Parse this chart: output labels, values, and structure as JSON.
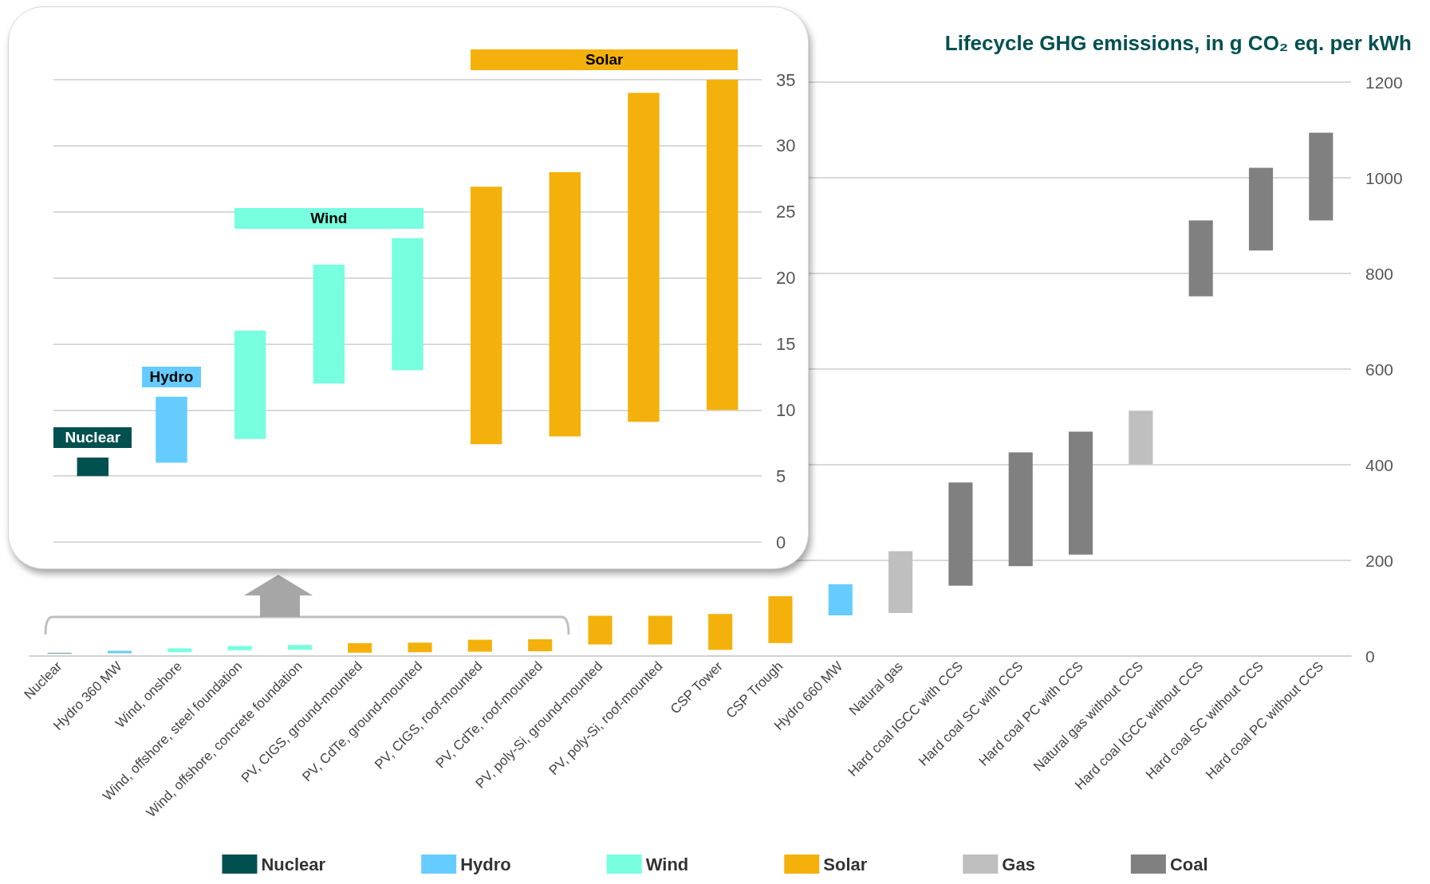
{
  "chart_data": [
    {
      "type": "bar",
      "title": "Lifecycle GHG emissions, in g CO₂ eq. per kWh",
      "categories": [
        "Nuclear",
        "Hydro 360 MW",
        "Wind, onshore",
        "Wind, offshore, steel foundation",
        "Wind, offshore, concrete foundation",
        "PV, CIGS, ground-mounted",
        "PV, CdTe, ground-mounted",
        "PV, CIGS, roof-mounted",
        "PV, CdTe, roof-mounted",
        "PV, poly-Si, ground-mounted",
        "PV, poly-Si, roof-mounted",
        "CSP Tower",
        "CSP Trough",
        "Hydro 660 MW",
        "Natural gas",
        "Hard coal IGCC with CCS",
        "Hard coal SC with CCS",
        "Hard coal PC with CCS",
        "Natural gas without CCS",
        "Hard coal IGCC without CCS",
        "Hard coal SC without CCS",
        "Hard coal PC without CCS"
      ],
      "series": [
        {
          "name": "Nuclear",
          "color": "#00504f",
          "values": [
            1,
            null,
            null,
            null,
            null,
            null,
            null,
            null,
            null,
            null,
            null,
            null,
            null,
            null,
            null,
            null,
            null,
            null,
            null,
            null,
            null,
            null
          ],
          "base": [
            5,
            null,
            null,
            null,
            null,
            null,
            null,
            null,
            null,
            null,
            null,
            null,
            null,
            null,
            null,
            null,
            null,
            null,
            null,
            null,
            null,
            null
          ]
        },
        {
          "name": "Hydro",
          "color": "#66ccff",
          "values": [
            null,
            5,
            null,
            null,
            null,
            null,
            null,
            null,
            null,
            null,
            null,
            null,
            null,
            65,
            null,
            null,
            null,
            null,
            null,
            null,
            null,
            null
          ],
          "base": [
            null,
            6,
            null,
            null,
            null,
            null,
            null,
            null,
            null,
            null,
            null,
            null,
            null,
            85,
            null,
            null,
            null,
            null,
            null,
            null,
            null,
            null
          ]
        },
        {
          "name": "Wind",
          "color": "#77ffdf",
          "values": [
            null,
            null,
            8,
            9,
            10,
            null,
            null,
            null,
            null,
            null,
            null,
            null,
            null,
            null,
            null,
            null,
            null,
            null,
            null,
            null,
            null,
            null
          ],
          "base": [
            null,
            null,
            8,
            12,
            13,
            null,
            null,
            null,
            null,
            null,
            null,
            null,
            null,
            null,
            null,
            null,
            null,
            null,
            null,
            null,
            null,
            null
          ]
        },
        {
          "name": "Solar",
          "color": "#f4b10b",
          "values": [
            null,
            null,
            null,
            null,
            null,
            20,
            20,
            25,
            25,
            60,
            60,
            75,
            98,
            null,
            null,
            null,
            null,
            null,
            null,
            null,
            null,
            null
          ],
          "base": [
            null,
            null,
            null,
            null,
            null,
            7,
            8,
            9,
            10,
            24,
            24,
            13,
            27,
            null,
            null,
            null,
            null,
            null,
            null,
            null,
            null,
            null
          ]
        },
        {
          "name": "Gas",
          "color": "#bfbfbf",
          "values": [
            null,
            null,
            null,
            null,
            null,
            null,
            null,
            null,
            null,
            null,
            null,
            null,
            null,
            null,
            129,
            null,
            null,
            null,
            112,
            null,
            null,
            null
          ],
          "base": [
            null,
            null,
            null,
            null,
            null,
            null,
            null,
            null,
            null,
            null,
            null,
            null,
            null,
            null,
            90,
            null,
            null,
            null,
            401,
            null,
            null,
            null
          ]
        },
        {
          "name": "Coal",
          "color": "#808080",
          "values": [
            null,
            null,
            null,
            null,
            null,
            null,
            null,
            null,
            null,
            null,
            null,
            null,
            null,
            null,
            null,
            216,
            238,
            257,
            null,
            159,
            173,
            183
          ],
          "base": [
            null,
            null,
            null,
            null,
            null,
            null,
            null,
            null,
            null,
            null,
            null,
            null,
            null,
            null,
            null,
            147,
            188,
            212,
            null,
            752,
            848,
            911
          ]
        }
      ],
      "ylim": [
        0,
        1200
      ],
      "yticks": [
        0,
        200,
        400,
        600,
        800,
        1000,
        1200
      ],
      "grid": "y",
      "legend": "bottom"
    },
    {
      "type": "bar",
      "categories": [
        null,
        null,
        null,
        null,
        null,
        null,
        null,
        null,
        null
      ],
      "series": [
        {
          "name": "Nuclear",
          "color": "#00504f",
          "values": [
            1.4,
            null,
            null,
            null,
            null,
            null,
            null,
            null,
            null
          ],
          "base": [
            5,
            null,
            null,
            null,
            null,
            null,
            null,
            null,
            null
          ]
        },
        {
          "name": "Hydro",
          "color": "#66ccff",
          "values": [
            null,
            5,
            null,
            null,
            null,
            null,
            null,
            null,
            null
          ],
          "base": [
            null,
            6,
            null,
            null,
            null,
            null,
            null,
            null,
            null
          ]
        },
        {
          "name": "Wind",
          "color": "#77ffdf",
          "values": [
            null,
            null,
            8.2,
            9,
            10,
            null,
            null,
            null,
            null
          ],
          "base": [
            null,
            null,
            7.8,
            12,
            13,
            null,
            null,
            null,
            null
          ]
        },
        {
          "name": "Solar",
          "color": "#f4b10b",
          "values": [
            null,
            null,
            null,
            null,
            null,
            19.5,
            20,
            24.9,
            25
          ],
          "base": [
            null,
            null,
            null,
            null,
            null,
            7.4,
            8,
            9.1,
            10
          ]
        }
      ],
      "ylim": [
        0,
        35
      ],
      "yticks": [
        0,
        5,
        10,
        15,
        20,
        25,
        30,
        35
      ],
      "grid": "y",
      "tick_labels": "y"
    }
  ]
}
